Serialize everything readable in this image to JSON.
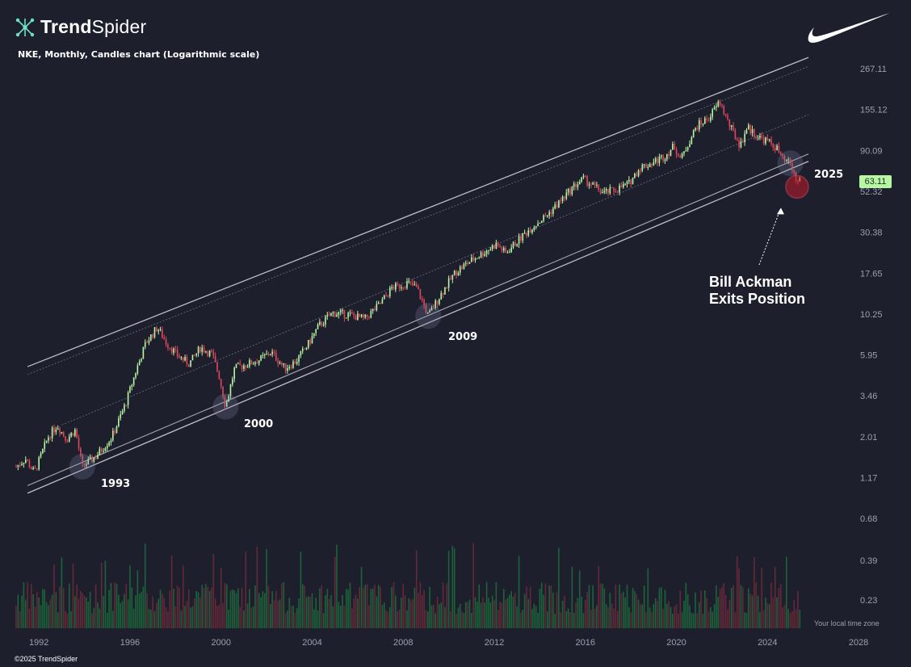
{
  "brand": {
    "name_bold": "Trend",
    "name_light": "Spider",
    "logo_icon": "trendspider-logo-icon"
  },
  "logo": {
    "icon": "nike-swoosh-icon"
  },
  "footer": {
    "copyright": "©2025 TrendSpider"
  },
  "chart_data": {
    "type": "candlestick",
    "title": "NKE, Monthly, Candles chart (Logarithmic scale)",
    "symbol": "NKE",
    "interval": "Monthly",
    "scale": "log",
    "y_ticks": [
      267.11,
      155.12,
      90.09,
      52.32,
      30.38,
      17.65,
      10.25,
      5.95,
      3.46,
      2.01,
      1.17,
      0.68,
      0.39,
      0.23
    ],
    "y_tick_labels": [
      "267.11",
      "155.12",
      "90.09",
      "52.32",
      "30.38",
      "17.65",
      "10.25",
      "5.95",
      "3.46",
      "2.01",
      "1.17",
      "0.68",
      "0.39",
      "0.23"
    ],
    "x_ticks": [
      "1992",
      "1996",
      "2000",
      "2004",
      "2008",
      "2012",
      "2016",
      "2020",
      "2024",
      "2028"
    ],
    "last_price": "63.11",
    "timezone_note": "Your local time zone",
    "price_path": [
      [
        1991.0,
        1.35
      ],
      [
        1991.4,
        1.5
      ],
      [
        1991.8,
        1.25
      ],
      [
        1992.4,
        2.0
      ],
      [
        1992.8,
        2.35
      ],
      [
        1993.2,
        1.95
      ],
      [
        1993.6,
        2.2
      ],
      [
        1993.9,
        1.35
      ],
      [
        1994.5,
        1.55
      ],
      [
        1995.2,
        2.0
      ],
      [
        1995.8,
        3.1
      ],
      [
        1996.3,
        5.0
      ],
      [
        1996.7,
        7.0
      ],
      [
        1997.2,
        8.6
      ],
      [
        1997.6,
        7.0
      ],
      [
        1998.1,
        5.9
      ],
      [
        1998.6,
        5.3
      ],
      [
        1999.1,
        6.6
      ],
      [
        1999.6,
        6.0
      ],
      [
        1999.9,
        4.6
      ],
      [
        2000.2,
        3.0
      ],
      [
        2000.6,
        5.0
      ],
      [
        2001.2,
        5.3
      ],
      [
        2001.7,
        5.6
      ],
      [
        2002.2,
        6.2
      ],
      [
        2002.8,
        5.0
      ],
      [
        2003.3,
        5.5
      ],
      [
        2003.8,
        6.8
      ],
      [
        2004.3,
        8.8
      ],
      [
        2004.9,
        10.4
      ],
      [
        2005.6,
        10.2
      ],
      [
        2006.3,
        9.6
      ],
      [
        2007.0,
        11.8
      ],
      [
        2007.5,
        14.5
      ],
      [
        2008.2,
        15.5
      ],
      [
        2008.6,
        14.5
      ],
      [
        2009.1,
        10.0
      ],
      [
        2009.6,
        13.0
      ],
      [
        2010.3,
        18.0
      ],
      [
        2011.0,
        21.0
      ],
      [
        2011.7,
        24.0
      ],
      [
        2012.1,
        26.0
      ],
      [
        2012.5,
        23.0
      ],
      [
        2013.0,
        27.0
      ],
      [
        2013.7,
        33.0
      ],
      [
        2014.3,
        38.0
      ],
      [
        2014.9,
        46.0
      ],
      [
        2015.5,
        56.0
      ],
      [
        2015.9,
        62.0
      ],
      [
        2016.3,
        57.0
      ],
      [
        2016.8,
        51.0
      ],
      [
        2017.4,
        54.0
      ],
      [
        2017.9,
        58.0
      ],
      [
        2018.4,
        72.0
      ],
      [
        2018.9,
        76.0
      ],
      [
        2019.5,
        84.0
      ],
      [
        2019.9,
        96.0
      ],
      [
        2020.2,
        80.0
      ],
      [
        2020.5,
        98.0
      ],
      [
        2020.9,
        125.0
      ],
      [
        2021.4,
        138.0
      ],
      [
        2021.9,
        172.0
      ],
      [
        2022.3,
        128.0
      ],
      [
        2022.8,
        96.0
      ],
      [
        2023.1,
        123.0
      ],
      [
        2023.6,
        108.0
      ],
      [
        2024.0,
        102.0
      ],
      [
        2024.4,
        93.0
      ],
      [
        2024.7,
        78.0
      ],
      [
        2025.0,
        76.0
      ],
      [
        2025.3,
        58.0
      ],
      [
        2025.45,
        63.11
      ]
    ],
    "annotations": [
      {
        "label": "1993",
        "x": 1993.9,
        "y": 1.35
      },
      {
        "label": "2000",
        "x": 2000.2,
        "y": 3.0
      },
      {
        "label": "2009",
        "x": 2009.1,
        "y": 10.0
      },
      {
        "label": "2025",
        "x": 2025.0,
        "y": 76.0
      },
      {
        "label": "Bill Ackman Exits Position",
        "x": 2025.3,
        "y": 58.0
      }
    ],
    "channel": {
      "upper": [
        [
          1991.5,
          5.1
        ],
        [
          2025.8,
          310.0
        ]
      ],
      "upper_inner": [
        [
          1991.5,
          4.6
        ],
        [
          2025.8,
          275.0
        ]
      ],
      "middle": [
        [
          1993.0,
          2.35
        ],
        [
          2025.8,
          145.0
        ]
      ],
      "lower_inner": [
        [
          1991.5,
          1.05
        ],
        [
          2025.8,
          86.0
        ]
      ],
      "lower": [
        [
          1991.5,
          0.95
        ],
        [
          2025.8,
          78.0
        ]
      ]
    },
    "volume_panel": {
      "shown": true,
      "units": "shares",
      "relative": true
    },
    "colors": {
      "up": "#b7f7a3",
      "down": "#e0475c",
      "volume_up": "#1c6a3c",
      "volume_down": "#6b2a3a",
      "channel": "#d9d9e0",
      "background": "#1e1f2d"
    }
  },
  "labels": {
    "ann_1993": "1993",
    "ann_2000": "2000",
    "ann_2009": "2009",
    "ann_2025": "2025",
    "ackman_line1": "Bill Ackman",
    "ackman_line2": "Exits Position"
  }
}
